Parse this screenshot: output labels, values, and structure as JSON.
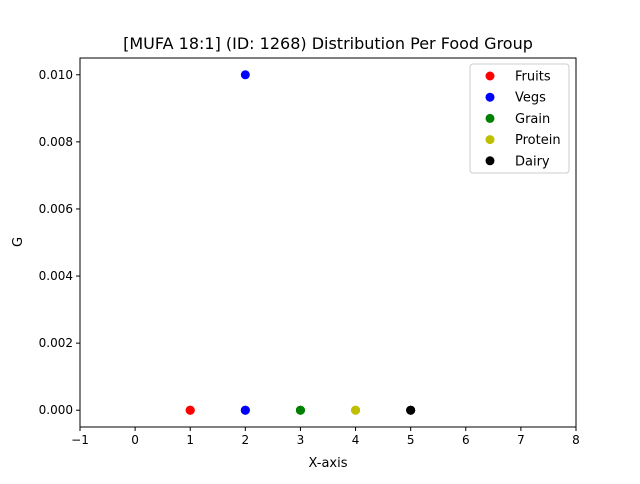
{
  "chart_data": {
    "type": "scatter",
    "title": "[MUFA 18:1] (ID: 1268) Distribution Per Food Group",
    "xlabel": "X-axis",
    "ylabel": "G",
    "xlim": [
      -1,
      8
    ],
    "ylim": [
      -0.0005,
      0.0105
    ],
    "x_ticks": [
      -1,
      0,
      1,
      2,
      3,
      4,
      5,
      6,
      7,
      8
    ],
    "x_tick_labels": [
      "−1",
      "0",
      "1",
      "2",
      "3",
      "4",
      "5",
      "6",
      "7",
      "8"
    ],
    "y_ticks": [
      0,
      0.002,
      0.004,
      0.006,
      0.008,
      0.01
    ],
    "y_tick_labels": [
      "0.000",
      "0.002",
      "0.004",
      "0.006",
      "0.008",
      "0.010"
    ],
    "grid": false,
    "legend_position": "top-right",
    "series": [
      {
        "name": "Fruits",
        "color": "#ff0000",
        "points": [
          [
            1,
            0
          ],
          [
            1,
            0
          ],
          [
            1,
            0
          ]
        ]
      },
      {
        "name": "Vegs",
        "color": "#0000ff",
        "points": [
          [
            2,
            0.01
          ],
          [
            2,
            0
          ],
          [
            2,
            0
          ],
          [
            2,
            0
          ]
        ]
      },
      {
        "name": "Grain",
        "color": "#008000",
        "points": [
          [
            3,
            0
          ],
          [
            3,
            0
          ],
          [
            3,
            0
          ]
        ]
      },
      {
        "name": "Protein",
        "color": "#bfbf00",
        "points": [
          [
            4,
            0
          ],
          [
            4,
            0
          ],
          [
            4,
            0
          ]
        ]
      },
      {
        "name": "Dairy",
        "color": "#000000",
        "points": [
          [
            5,
            0
          ],
          [
            5,
            0
          ],
          [
            5,
            0
          ]
        ]
      }
    ]
  }
}
